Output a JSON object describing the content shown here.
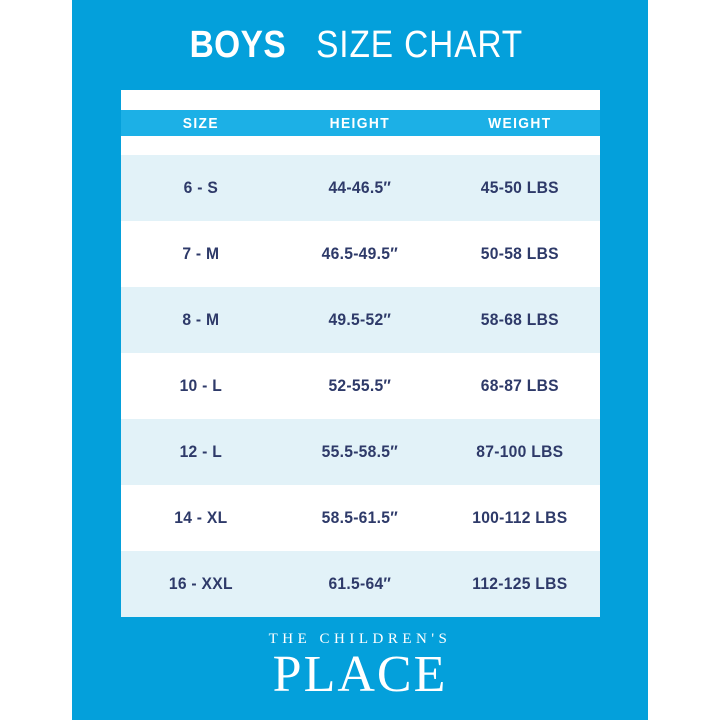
{
  "title": {
    "bold": "BOYS",
    "rest": "SIZE CHART"
  },
  "colors": {
    "card_blue": "#04a0db",
    "header_cyan": "#1cb0e6",
    "row_light_blue": "#e2f2f8",
    "row_white": "#ffffff",
    "text_navy": "#2e3a69",
    "text_white": "#ffffff",
    "page_margin_white": "#ffffff"
  },
  "table": {
    "headers": [
      "SIZE",
      "HEIGHT",
      "WEIGHT"
    ],
    "rows": [
      {
        "size": "6 - S",
        "height": "44-46.5″",
        "weight": "45-50 LBS"
      },
      {
        "size": "7 - M",
        "height": "46.5-49.5″",
        "weight": "50-58 LBS"
      },
      {
        "size": "8 - M",
        "height": "49.5-52″",
        "weight": "58-68 LBS"
      },
      {
        "size": "10 - L",
        "height": "52-55.5″",
        "weight": "68-87 LBS"
      },
      {
        "size": "12 - L",
        "height": "55.5-58.5″",
        "weight": "87-100 LBS"
      },
      {
        "size": "14 - XL",
        "height": "58.5-61.5″",
        "weight": "100-112 LBS"
      },
      {
        "size": "16 - XXL",
        "height": "61.5-64″",
        "weight": "112-125 LBS"
      }
    ]
  },
  "footer": {
    "line1": "THE CHILDREN'S",
    "line2": "PLACE"
  }
}
